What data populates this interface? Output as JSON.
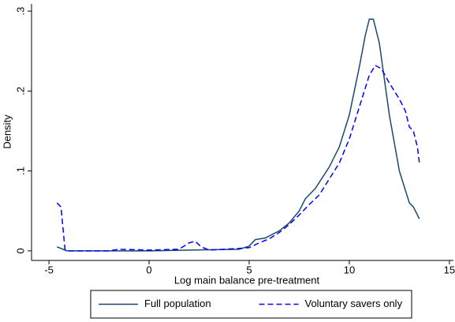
{
  "chart_data": {
    "type": "line",
    "xlabel": "Log main balance pre-treatment",
    "ylabel": "Density",
    "xlim": [
      -5.87,
      15.2
    ],
    "xticks": [
      -5,
      0,
      5,
      10,
      15
    ],
    "ylim": [
      -0.012,
      0.309
    ],
    "yticks": [
      0,
      {
        "value": 0.1,
        "label": ".1"
      },
      {
        "value": 0.2,
        "label": ".2"
      },
      {
        "value": 0.3,
        "label": ".3"
      }
    ],
    "legend": "bottom",
    "series": [
      {
        "name": "Full population",
        "color": "#1a476f",
        "line_style": "solid",
        "x": [
          -4.6,
          -4.3,
          -4.1,
          -2,
          0,
          2,
          4.5,
          5,
          5.3,
          5.8,
          6.5,
          7,
          7.5,
          7.8,
          8.3,
          9,
          9.5,
          10,
          10.5,
          10.8,
          11,
          11.2,
          11.5,
          12,
          12.5,
          13,
          13.2,
          13.5
        ],
        "values": [
          0.005,
          0.002,
          0,
          0,
          0,
          0.001,
          0.002,
          0.006,
          0.014,
          0.016,
          0.025,
          0.035,
          0.05,
          0.065,
          0.078,
          0.105,
          0.13,
          0.17,
          0.23,
          0.27,
          0.29,
          0.29,
          0.26,
          0.17,
          0.1,
          0.06,
          0.055,
          0.04
        ]
      },
      {
        "name": "Voluntary savers only",
        "color": "#0000ff",
        "line_style": "dashed",
        "x": [
          -4.6,
          -4.4,
          -4.2,
          -4,
          -2,
          -1.5,
          0,
          1.5,
          2,
          2.3,
          2.6,
          3,
          4.5,
          5,
          5.5,
          6,
          6.5,
          7,
          7.5,
          8,
          8.5,
          9,
          9.5,
          10,
          10.5,
          11,
          11.3,
          11.6,
          12,
          12.5,
          12.8,
          13,
          13.2,
          13.4,
          13.5
        ],
        "values": [
          0.06,
          0.055,
          0.002,
          0,
          0,
          0.002,
          0.001,
          0.002,
          0.01,
          0.012,
          0.005,
          0.001,
          0.003,
          0.004,
          0.01,
          0.015,
          0.023,
          0.033,
          0.045,
          0.058,
          0.07,
          0.09,
          0.11,
          0.14,
          0.18,
          0.22,
          0.232,
          0.228,
          0.21,
          0.19,
          0.175,
          0.155,
          0.15,
          0.13,
          0.11
        ]
      }
    ]
  }
}
